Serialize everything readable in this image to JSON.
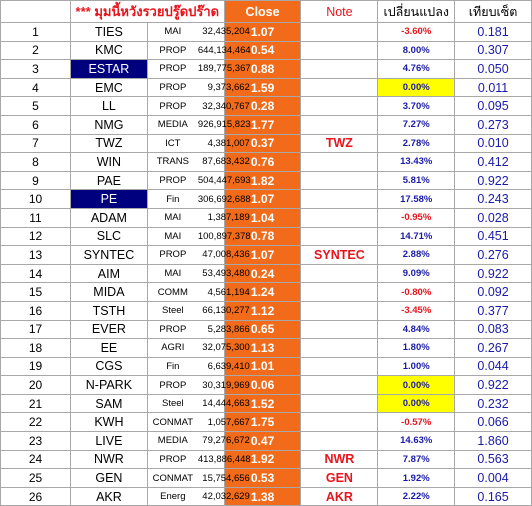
{
  "header": {
    "title": "*** มุมนี้หวังรวยปรู๊ดปร๊าด",
    "close": "Close",
    "note": "Note",
    "change": "เปลี่ยนแปลง",
    "compare": "เทียบเซ็ต"
  },
  "rows": [
    {
      "no": "1",
      "name": "TIES",
      "sector": "MAI",
      "volume": "32,435,204",
      "close": "1.07",
      "note": "",
      "change": "-3.60%",
      "compare": "0.181",
      "hl": false,
      "yellow": false
    },
    {
      "no": "2",
      "name": "KMC",
      "sector": "PROP",
      "volume": "644,134,464",
      "close": "0.54",
      "note": "",
      "change": "8.00%",
      "compare": "0.307",
      "hl": false,
      "yellow": false
    },
    {
      "no": "3",
      "name": "ESTAR",
      "sector": "PROP",
      "volume": "189,775,367",
      "close": "0.88",
      "note": "",
      "change": "4.76%",
      "compare": "0.050",
      "hl": true,
      "yellow": false
    },
    {
      "no": "4",
      "name": "EMC",
      "sector": "PROP",
      "volume": "9,373,662",
      "close": "1.59",
      "note": "",
      "change": "0.00%",
      "compare": "0.011",
      "hl": false,
      "yellow": true
    },
    {
      "no": "5",
      "name": "LL",
      "sector": "PROP",
      "volume": "32,340,767",
      "close": "0.28",
      "note": "",
      "change": "3.70%",
      "compare": "0.095",
      "hl": false,
      "yellow": false
    },
    {
      "no": "6",
      "name": "NMG",
      "sector": "MEDIA",
      "volume": "926,915,823",
      "close": "1.77",
      "note": "",
      "change": "7.27%",
      "compare": "0.273",
      "hl": false,
      "yellow": false
    },
    {
      "no": "7",
      "name": "TWZ",
      "sector": "ICT",
      "volume": "4,381,007",
      "close": "0.37",
      "note": "TWZ",
      "change": "2.78%",
      "compare": "0.010",
      "hl": false,
      "yellow": false
    },
    {
      "no": "8",
      "name": "WIN",
      "sector": "TRANS",
      "volume": "87,683,432",
      "close": "0.76",
      "note": "",
      "change": "13.43%",
      "compare": "0.412",
      "hl": false,
      "yellow": false
    },
    {
      "no": "9",
      "name": "PAE",
      "sector": "PROP",
      "volume": "504,447,693",
      "close": "1.82",
      "note": "",
      "change": "5.81%",
      "compare": "0.922",
      "hl": false,
      "yellow": false
    },
    {
      "no": "10",
      "name": "PE",
      "sector": "Fin",
      "volume": "306,692,688",
      "close": "1.07",
      "note": "",
      "change": "17.58%",
      "compare": "0.243",
      "hl": true,
      "yellow": false
    },
    {
      "no": "11",
      "name": "ADAM",
      "sector": "MAI",
      "volume": "1,387,189",
      "close": "1.04",
      "note": "",
      "change": "-0.95%",
      "compare": "0.028",
      "hl": false,
      "yellow": false
    },
    {
      "no": "12",
      "name": "SLC",
      "sector": "MAI",
      "volume": "100,897,378",
      "close": "0.78",
      "note": "",
      "change": "14.71%",
      "compare": "0.451",
      "hl": false,
      "yellow": false
    },
    {
      "no": "13",
      "name": "SYNTEC",
      "sector": "PROP",
      "volume": "47,008,436",
      "close": "1.07",
      "note": "SYNTEC",
      "change": "2.88%",
      "compare": "0.276",
      "hl": false,
      "yellow": false
    },
    {
      "no": "14",
      "name": "AIM",
      "sector": "MAI",
      "volume": "53,493,480",
      "close": "0.24",
      "note": "",
      "change": "9.09%",
      "compare": "0.922",
      "hl": false,
      "yellow": false
    },
    {
      "no": "15",
      "name": "MIDA",
      "sector": "COMM",
      "volume": "4,561,194",
      "close": "1.24",
      "note": "",
      "change": "-0.80%",
      "compare": "0.092",
      "hl": false,
      "yellow": false
    },
    {
      "no": "16",
      "name": "TSTH",
      "sector": "Steel",
      "volume": "66,130,277",
      "close": "1.12",
      "note": "",
      "change": "-3.45%",
      "compare": "0.377",
      "hl": false,
      "yellow": false
    },
    {
      "no": "17",
      "name": "EVER",
      "sector": "PROP",
      "volume": "5,283,866",
      "close": "0.65",
      "note": "",
      "change": "4.84%",
      "compare": "0.083",
      "hl": false,
      "yellow": false
    },
    {
      "no": "18",
      "name": "EE",
      "sector": "AGRI",
      "volume": "32,075,300",
      "close": "1.13",
      "note": "",
      "change": "1.80%",
      "compare": "0.267",
      "hl": false,
      "yellow": false
    },
    {
      "no": "19",
      "name": "CGS",
      "sector": "Fin",
      "volume": "6,639,410",
      "close": "1.01",
      "note": "",
      "change": "1.00%",
      "compare": "0.044",
      "hl": false,
      "yellow": false
    },
    {
      "no": "20",
      "name": "N-PARK",
      "sector": "PROP",
      "volume": "30,319,969",
      "close": "0.06",
      "note": "",
      "change": "0.00%",
      "compare": "0.922",
      "hl": false,
      "yellow": true
    },
    {
      "no": "21",
      "name": "SAM",
      "sector": "Steel",
      "volume": "14,444,663",
      "close": "1.52",
      "note": "",
      "change": "0.00%",
      "compare": "0.232",
      "hl": false,
      "yellow": true
    },
    {
      "no": "22",
      "name": "KWH",
      "sector": "CONMAT",
      "volume": "1,057,667",
      "close": "1.75",
      "note": "",
      "change": "-0.57%",
      "compare": "0.066",
      "hl": false,
      "yellow": false
    },
    {
      "no": "23",
      "name": "LIVE",
      "sector": "MEDIA",
      "volume": "79,276,672",
      "close": "0.47",
      "note": "",
      "change": "14.63%",
      "compare": "1.860",
      "hl": false,
      "yellow": false
    },
    {
      "no": "24",
      "name": "NWR",
      "sector": "PROP",
      "volume": "413,886,448",
      "close": "1.92",
      "note": "NWR",
      "change": "7.87%",
      "compare": "0.563",
      "hl": false,
      "yellow": false
    },
    {
      "no": "25",
      "name": "GEN",
      "sector": "CONMAT",
      "volume": "15,754,656",
      "close": "0.53",
      "note": "GEN",
      "change": "1.92%",
      "compare": "0.004",
      "hl": false,
      "yellow": false
    },
    {
      "no": "26",
      "name": "AKR",
      "sector": "Energ",
      "volume": "42,032,629",
      "close": "1.38",
      "note": "AKR",
      "change": "2.22%",
      "compare": "0.165",
      "hl": false,
      "yellow": false
    }
  ]
}
